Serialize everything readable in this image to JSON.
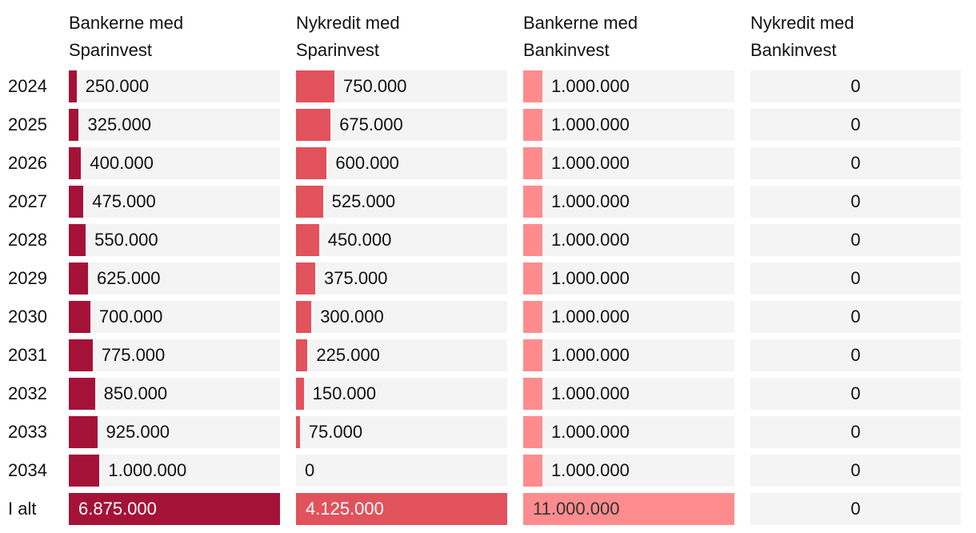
{
  "colors": {
    "col1_bar": "#a51238",
    "col2_bar": "#e2525c",
    "col3_bar": "#fe8c8e",
    "cell_bg": "#f4f4f4",
    "text": "#111111",
    "total_text_light": "#ffffff",
    "total_text_dark": "#333333"
  },
  "table": {
    "row_labels": [
      "2024",
      "2025",
      "2026",
      "2027",
      "2028",
      "2029",
      "2030",
      "2031",
      "2032",
      "2033",
      "2034",
      "I alt"
    ],
    "columns": [
      {
        "header_line1": "Bankerne med",
        "header_line2": "Sparinvest",
        "display_values": [
          "250.000",
          "325.000",
          "400.000",
          "475.000",
          "550.000",
          "625.000",
          "700.000",
          "775.000",
          "850.000",
          "925.000",
          "1.000.000",
          "6.875.000"
        ]
      },
      {
        "header_line1": "Nykredit med",
        "header_line2": "Sparinvest",
        "display_values": [
          "750.000",
          "675.000",
          "600.000",
          "525.000",
          "450.000",
          "375.000",
          "300.000",
          "225.000",
          "150.000",
          "75.000",
          "0",
          "4.125.000"
        ]
      },
      {
        "header_line1": "Bankerne med",
        "header_line2": "Bankinvest",
        "display_values": [
          "1.000.000",
          "1.000.000",
          "1.000.000",
          "1.000.000",
          "1.000.000",
          "1.000.000",
          "1.000.000",
          "1.000.000",
          "1.000.000",
          "1.000.000",
          "1.000.000",
          "11.000.000"
        ]
      },
      {
        "header_line1": "Nykredit med",
        "header_line2": "Bankinvest",
        "display_values": [
          "0",
          "0",
          "0",
          "0",
          "0",
          "0",
          "0",
          "0",
          "0",
          "0",
          "0",
          "0"
        ]
      }
    ]
  },
  "chart_data": {
    "type": "bar",
    "subtype": "table-with-horizontal-bars",
    "categories": [
      "2024",
      "2025",
      "2026",
      "2027",
      "2028",
      "2029",
      "2030",
      "2031",
      "2032",
      "2033",
      "2034",
      "I alt"
    ],
    "series": [
      {
        "name": "Bankerne med Sparinvest",
        "values": [
          250000,
          325000,
          400000,
          475000,
          550000,
          625000,
          700000,
          775000,
          850000,
          925000,
          1000000,
          6875000
        ]
      },
      {
        "name": "Nykredit med Sparinvest",
        "values": [
          750000,
          675000,
          600000,
          525000,
          450000,
          375000,
          300000,
          225000,
          150000,
          75000,
          0,
          4125000
        ]
      },
      {
        "name": "Bankerne med Bankinvest",
        "values": [
          1000000,
          1000000,
          1000000,
          1000000,
          1000000,
          1000000,
          1000000,
          1000000,
          1000000,
          1000000,
          1000000,
          11000000
        ]
      },
      {
        "name": "Nykredit med Bankinvest",
        "values": [
          0,
          0,
          0,
          0,
          0,
          0,
          0,
          0,
          0,
          0,
          0,
          0
        ]
      }
    ],
    "title": "",
    "xlabel": "",
    "ylabel": "",
    "bar_scaling": "each column's bars are scaled relative to that column's 'I alt' total (total row = full cell width)",
    "number_format": "da-DK, dot as thousands separator",
    "grid": false,
    "legend": false
  }
}
